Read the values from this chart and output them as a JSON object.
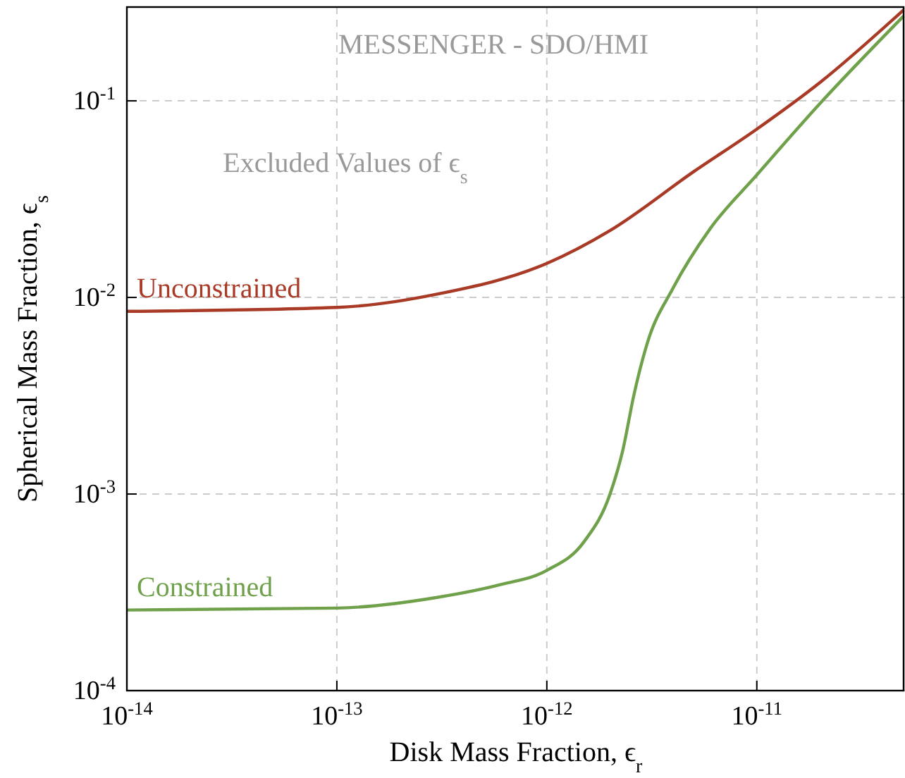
{
  "chart_data": {
    "type": "line",
    "xlabel": "Disk Mass Fraction, ϵ$_{r}$",
    "ylabel": "Spherical Mass Fraction, ϵ$_{s}$",
    "log": "xy",
    "grid": true,
    "marker": "none",
    "line_style": "solid",
    "xlim": [
      1e-14,
      5e-11
    ],
    "ylim": [
      0.0001,
      0.3
    ],
    "xticks": [
      {
        "value": 1e-14,
        "label": "10$^{-14}$"
      },
      {
        "value": 1e-13,
        "label": "10$^{-13}$"
      },
      {
        "value": 1e-12,
        "label": "10$^{-12}$"
      },
      {
        "value": 1e-11,
        "label": "10$^{-11}$"
      }
    ],
    "yticks": [
      {
        "value": 0.0001,
        "label": "10$^{-4}$"
      },
      {
        "value": 0.001,
        "label": "10$^{-3}$"
      },
      {
        "value": 0.01,
        "label": "10$^{-2}$"
      },
      {
        "value": 0.1,
        "label": "10$^{-1}$"
      }
    ],
    "annotations": [
      "MESSENGER - SDO/HMI",
      "Excluded Values of ϵ$_{s}$"
    ],
    "series": [
      {
        "name": "Unconstrained",
        "color": "#a93a26",
        "x": [
          1e-14,
          1e-13,
          3e-13,
          1e-12,
          2e-12,
          5e-12,
          1e-11,
          2e-11,
          5e-11
        ],
        "values": [
          0.0085,
          0.0089,
          0.0104,
          0.0149,
          0.0219,
          0.0436,
          0.0718,
          0.124,
          0.29
        ]
      },
      {
        "name": "Constrained",
        "color": "#6fa04a",
        "x": [
          1e-14,
          1e-13,
          3e-13,
          6e-13,
          1e-12,
          1.5e-12,
          2e-12,
          2.3e-12,
          2.6e-12,
          3e-12,
          4e-12,
          6e-12,
          1e-11,
          2e-11,
          5e-11
        ],
        "values": [
          0.000257,
          0.000263,
          0.000298,
          0.000346,
          0.000409,
          0.00057,
          0.001,
          0.00167,
          0.0032,
          0.0058,
          0.0112,
          0.0224,
          0.042,
          0.097,
          0.27
        ]
      }
    ]
  }
}
